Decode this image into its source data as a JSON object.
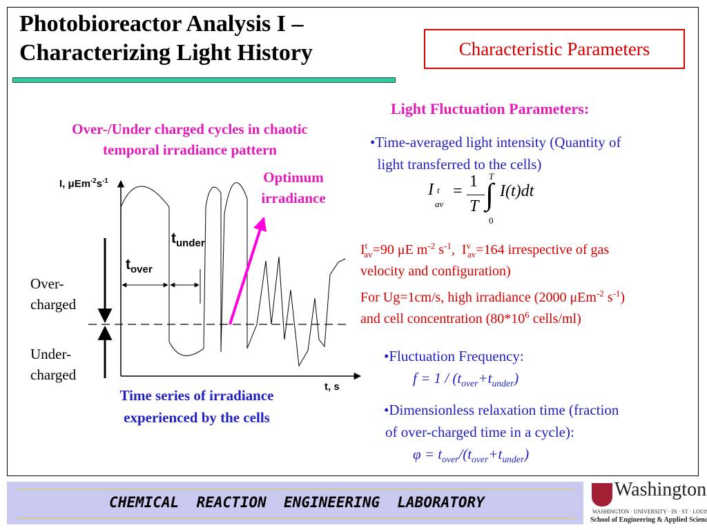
{
  "header": {
    "title": [
      "Photobioreactor Analysis I –",
      "Characterizing Light History"
    ],
    "box": "Characteristic Parameters"
  },
  "diagram": {
    "caption_top": [
      "Over-/Under charged cycles in chaotic",
      "temporal irradiance pattern"
    ],
    "y_label": [
      "I, ",
      "μEm",
      "-2",
      "s",
      "-1"
    ],
    "x_label": "t, s",
    "optimum": [
      "Optimum",
      "irradiance"
    ],
    "t_under": [
      "t",
      "under"
    ],
    "t_over": [
      "t",
      "over"
    ],
    "over": [
      "Over-",
      "charged"
    ],
    "under": [
      "Under-",
      "charged"
    ],
    "caption_bottom": [
      "Time series of irradiance",
      "experienced by the cells"
    ]
  },
  "params": {
    "heading": "Light Fluctuation Parameters:",
    "bullet1": [
      "•Time-averaged light intensity (Quantity of",
      "  light transferred to the cells)"
    ],
    "formula": [
      "I",
      "t",
      "av",
      "=",
      "1",
      "T",
      "T",
      "0",
      "I(t)dt"
    ],
    "note1": [
      "I",
      "t",
      "av",
      "=90 μE m",
      "-2",
      " s",
      "-1",
      ",  I",
      "v",
      "av",
      "=164 irrespective of gas",
      "velocity and configuration)"
    ],
    "note2": [
      "For Ug=1cm/s, high irradiance (2000 μEm",
      "-2",
      " s",
      "-1",
      ")",
      "and cell concentration (80*10",
      "6",
      " cells/ml)"
    ],
    "frequency": [
      "•Fluctuation Frequency:",
      "f = 1 / (t",
      "over",
      "+t",
      "under",
      ")"
    ],
    "relaxation": [
      "•Dimensionless relaxation time (fraction",
      "of over-charged time in a cycle):",
      "φ = t",
      "over",
      "/(t",
      "over",
      "+t",
      "under",
      ")"
    ]
  },
  "footer": {
    "lab": "CHEMICAL  REACTION  ENGINEERING  LABORATORY",
    "logo": [
      "Washington",
      "WASHINGTON · UNIVERSITY · IN · ST · LOUIS",
      "School of Engineering & Applied Science"
    ]
  }
}
